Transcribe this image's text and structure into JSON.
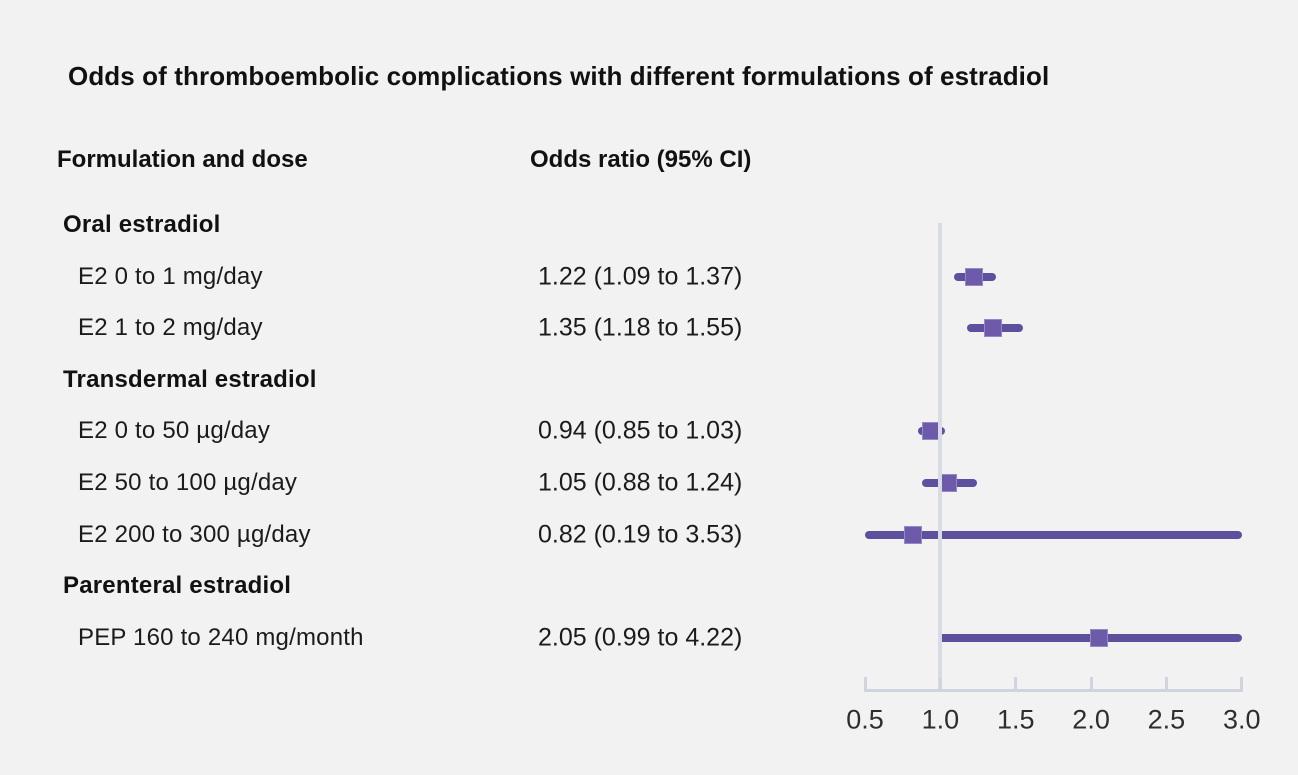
{
  "title": "Odds of thromboembolic complications with different formulations of estradiol",
  "columns": {
    "left": "Formulation and dose",
    "right": "Odds ratio (95% CI)"
  },
  "chart_data": {
    "type": "forest",
    "title": "Odds of thromboembolic complications with different formulations of estradiol",
    "column_headers": [
      "Formulation and dose",
      "Odds ratio (95% CI)"
    ],
    "rows": [
      {
        "kind": "group",
        "label": "Oral estradiol"
      },
      {
        "kind": "item",
        "label": "E2 0 to 1 mg/day",
        "or_text": "1.22 (1.09 to 1.37)",
        "or": 1.22,
        "lo": 1.09,
        "hi": 1.37
      },
      {
        "kind": "item",
        "label": "E2 1 to 2 mg/day",
        "or_text": "1.35 (1.18 to 1.55)",
        "or": 1.35,
        "lo": 1.18,
        "hi": 1.55
      },
      {
        "kind": "group",
        "label": "Transdermal estradiol"
      },
      {
        "kind": "item",
        "label": "E2 0 to 50 µg/day",
        "or_text": "0.94 (0.85 to 1.03)",
        "or": 0.94,
        "lo": 0.85,
        "hi": 1.03
      },
      {
        "kind": "item",
        "label": "E2 50 to 100 µg/day",
        "or_text": "1.05 (0.88 to 1.24)",
        "or": 1.05,
        "lo": 0.88,
        "hi": 1.24
      },
      {
        "kind": "item",
        "label": "E2 200 to 300 µg/day",
        "or_text": "0.82 (0.19 to 3.53)",
        "or": 0.82,
        "lo": 0.19,
        "hi": 3.53
      },
      {
        "kind": "group",
        "label": "Parenteral estradiol"
      },
      {
        "kind": "item",
        "label": "PEP 160 to 240 mg/month",
        "or_text": "2.05 (0.99 to 4.22)",
        "or": 2.05,
        "lo": 0.99,
        "hi": 4.22
      }
    ],
    "axis": {
      "min": 0.5,
      "max": 3.0,
      "reference": 1.0,
      "ticks": [
        {
          "value": 0.5,
          "label": "0.5"
        },
        {
          "value": 1.0,
          "label": "1.0"
        },
        {
          "value": 1.5,
          "label": "1.5"
        },
        {
          "value": 2.0,
          "label": "2.0"
        },
        {
          "value": 2.5,
          "label": "2.5"
        },
        {
          "value": 3.0,
          "label": "3.0"
        }
      ]
    },
    "colors": {
      "background": "#f2f2f2",
      "text": "#1a1a1a",
      "ci_line": "#5f509e",
      "marker": "#6d5ba9",
      "marker_border": "#9488c8",
      "axis": "#cfd4de",
      "reference_line": "#d7dbe4"
    }
  }
}
